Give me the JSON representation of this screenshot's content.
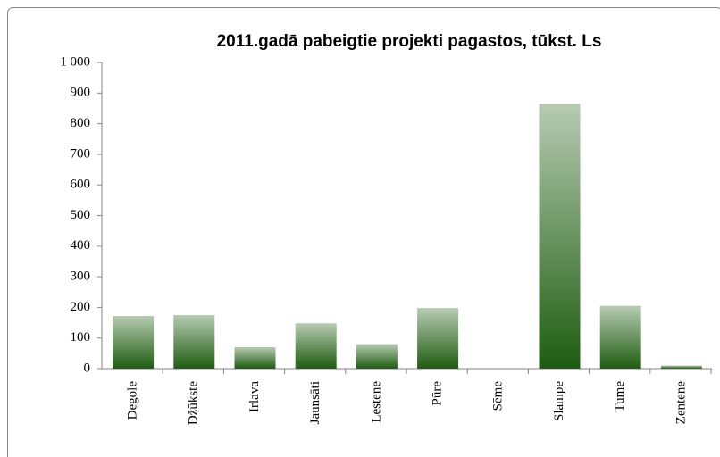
{
  "chart_data": {
    "type": "bar",
    "title": "2011.gadā pabeigtie projekti  pagastos, tūkst. Ls",
    "categories": [
      "Degole",
      "Džūkste",
      "Irlava",
      "Jaunsāti",
      "Lestene",
      "Pūre",
      "Sēme",
      "Slampe",
      "Tume",
      "Zentene"
    ],
    "values": [
      172,
      175,
      70,
      148,
      80,
      198,
      0,
      865,
      205,
      10
    ],
    "color": "#1e5c10",
    "ylim": [
      0,
      1000
    ],
    "yticks": [
      0,
      100,
      200,
      300,
      400,
      500,
      600,
      700,
      800,
      900,
      {
        "value": 1000,
        "label": "1 000"
      }
    ],
    "grid": false
  }
}
